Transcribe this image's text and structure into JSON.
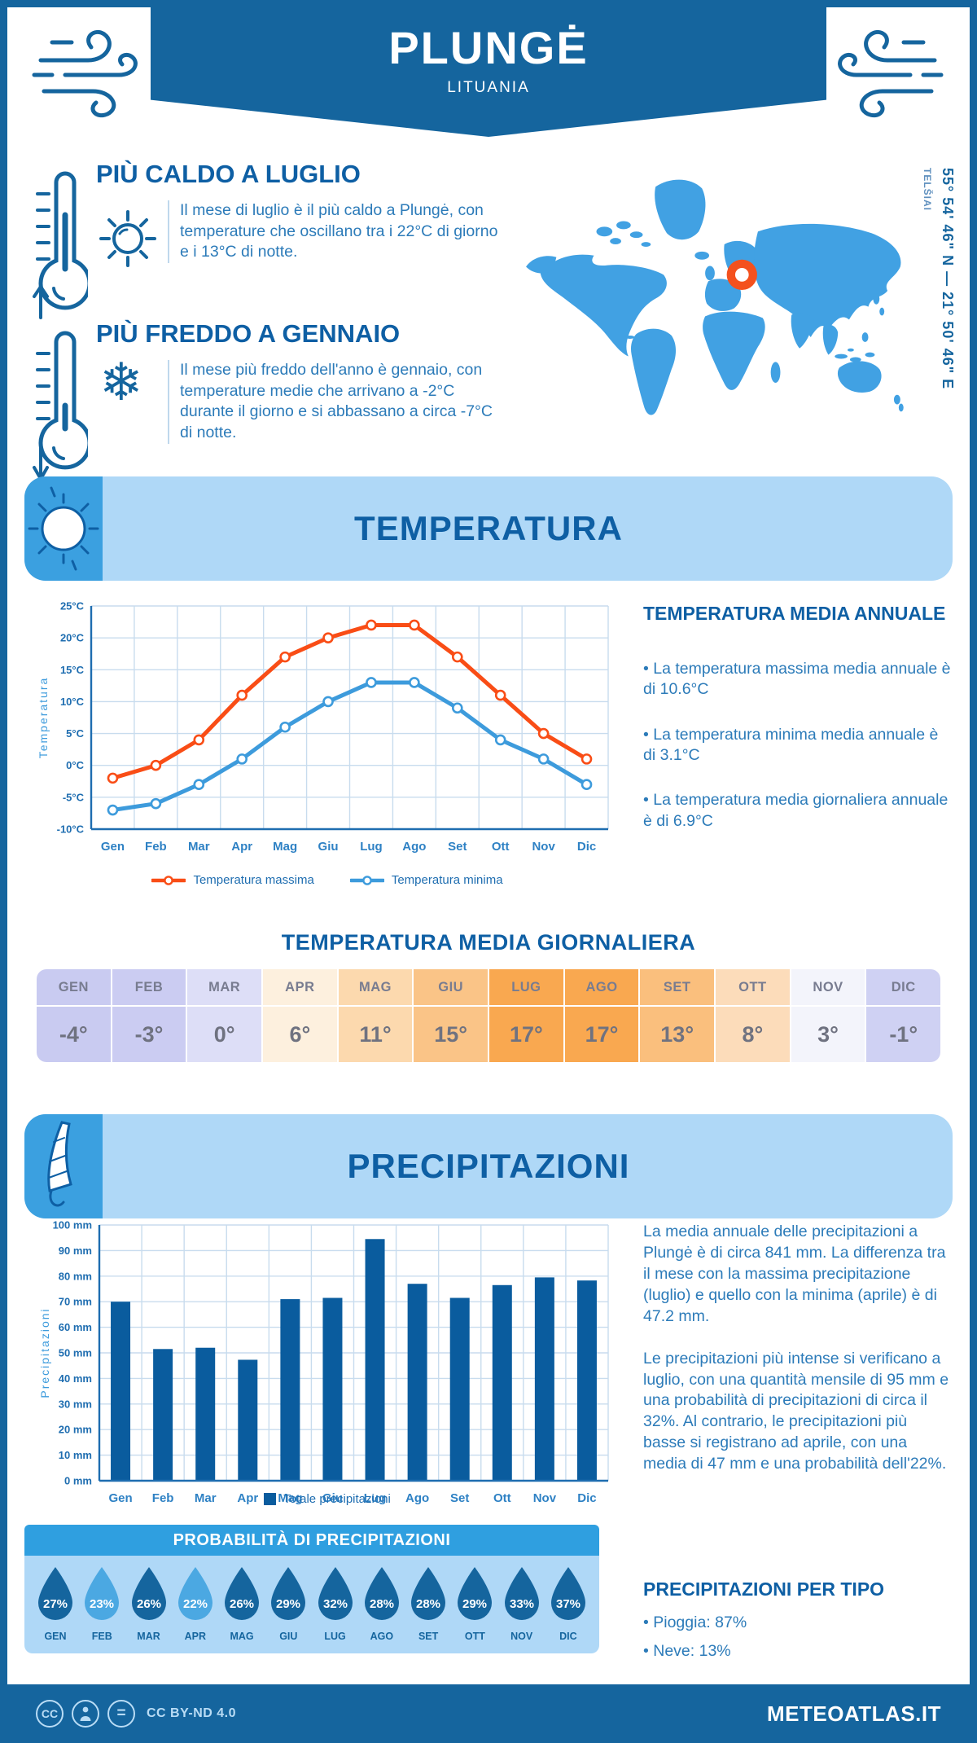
{
  "header": {
    "title": "PLUNGĖ",
    "subtitle": "LITUANIA"
  },
  "location": {
    "coordinates": "55° 54' 46\" N — 21° 50' 46\" E",
    "region": "TELŠIAI"
  },
  "highlights": {
    "warm": {
      "title": "PIÙ CALDO A LUGLIO",
      "body": "Il mese di luglio è il più caldo a Plungė, con temperature che oscillano tra i 22°C di giorno e i 13°C di notte."
    },
    "cold": {
      "title": "PIÙ FREDDO A GENNAIO",
      "body": "Il mese più freddo dell'anno è gennaio, con temperature medie che arrivano a -2°C durante il giorno e si abbassano a circa -7°C di notte."
    }
  },
  "temperature_section": {
    "banner": "TEMPERATURA",
    "annual_title": "TEMPERATURA MEDIA ANNUALE",
    "bullets": [
      "• La temperatura massima media annuale è di 10.6°C",
      "• La temperatura minima media annuale è di 3.1°C",
      "• La temperatura media giornaliera annuale è di 6.9°C"
    ]
  },
  "chart_data": [
    {
      "type": "line",
      "title": "Temperatura",
      "categories": [
        "Gen",
        "Feb",
        "Mar",
        "Apr",
        "Mag",
        "Giu",
        "Lug",
        "Ago",
        "Set",
        "Ott",
        "Nov",
        "Dic"
      ],
      "series": [
        {
          "name": "Temperatura massima",
          "color": "#F94D16",
          "values": [
            -2,
            0,
            4,
            11,
            17,
            20,
            22,
            22,
            17,
            11,
            5,
            1
          ]
        },
        {
          "name": "Temperatura minima",
          "color": "#3D9BDC",
          "values": [
            -7,
            -6,
            -3,
            1,
            6,
            10,
            13,
            13,
            9,
            4,
            1,
            -3
          ]
        }
      ],
      "xlabel": "",
      "ylabel": "Temperatura",
      "ylim": [
        -10,
        25
      ],
      "ytick_step": 5,
      "ytick_suffix": "°C",
      "grid": true,
      "legend_position": "bottom"
    },
    {
      "type": "bar",
      "title": "Precipitazioni",
      "categories": [
        "Gen",
        "Feb",
        "Mar",
        "Apr",
        "Mag",
        "Giu",
        "Lug",
        "Ago",
        "Set",
        "Ott",
        "Nov",
        "Dic"
      ],
      "series": [
        {
          "name": "Totale precipitazioni",
          "color": "#0A5C9E",
          "values": [
            70,
            51.5,
            52,
            47.3,
            71,
            71.5,
            94.5,
            77,
            71.5,
            76.5,
            79.5,
            78.3
          ]
        }
      ],
      "xlabel": "",
      "ylabel": "Precipitazioni",
      "ylim": [
        0,
        100
      ],
      "ytick_step": 10,
      "ytick_suffix": " mm",
      "grid": true,
      "legend_position": "bottom"
    }
  ],
  "temp_table": {
    "title": "TEMPERATURA MEDIA GIORNALIERA",
    "cells": [
      {
        "month": "GEN",
        "value": "-4°",
        "bg": "#c9cbf1"
      },
      {
        "month": "FEB",
        "value": "-3°",
        "bg": "#cbccf2"
      },
      {
        "month": "MAR",
        "value": "0°",
        "bg": "#dddef7"
      },
      {
        "month": "APR",
        "value": "6°",
        "bg": "#fdf0de"
      },
      {
        "month": "MAG",
        "value": "11°",
        "bg": "#fcd9ae"
      },
      {
        "month": "GIU",
        "value": "15°",
        "bg": "#fac487"
      },
      {
        "month": "LUG",
        "value": "17°",
        "bg": "#f9a850"
      },
      {
        "month": "AGO",
        "value": "17°",
        "bg": "#f9a850"
      },
      {
        "month": "SET",
        "value": "13°",
        "bg": "#fabf7d"
      },
      {
        "month": "OTT",
        "value": "8°",
        "bg": "#fcdcba"
      },
      {
        "month": "NOV",
        "value": "3°",
        "bg": "#f3f4fb"
      },
      {
        "month": "DIC",
        "value": "-1°",
        "bg": "#cfd1f3"
      }
    ]
  },
  "precipitation_section": {
    "banner": "PRECIPITAZIONI",
    "paragraph1": "La media annuale delle precipitazioni a Plungė è di circa 841 mm. La differenza tra il mese con la massima precipitazione (luglio) e quello con la minima (aprile) è di 47.2 mm.",
    "paragraph2": "Le precipitazioni più intense si verificano a luglio, con una quantità mensile di 95 mm e una probabilità di precipitazioni di circa il 32%. Al contrario, le precipitazioni più basse si registrano ad aprile, con una media di 47 mm e una probabilità dell'22%."
  },
  "probability": {
    "title": "PROBABILITÀ DI PRECIPITAZIONI",
    "drops": [
      {
        "month": "GEN",
        "value": "27%",
        "light": false
      },
      {
        "month": "FEB",
        "value": "23%",
        "light": true
      },
      {
        "month": "MAR",
        "value": "26%",
        "light": false
      },
      {
        "month": "APR",
        "value": "22%",
        "light": true
      },
      {
        "month": "MAG",
        "value": "26%",
        "light": false
      },
      {
        "month": "GIU",
        "value": "29%",
        "light": false
      },
      {
        "month": "LUG",
        "value": "32%",
        "light": false
      },
      {
        "month": "AGO",
        "value": "28%",
        "light": false
      },
      {
        "month": "SET",
        "value": "28%",
        "light": false
      },
      {
        "month": "OTT",
        "value": "29%",
        "light": false
      },
      {
        "month": "NOV",
        "value": "33%",
        "light": false
      },
      {
        "month": "DIC",
        "value": "37%",
        "light": false
      }
    ]
  },
  "precip_type": {
    "title": "PRECIPITAZIONI PER TIPO",
    "items": [
      "• Pioggia: 87%",
      "• Neve: 13%"
    ]
  },
  "footer": {
    "license": "CC BY-ND 4.0",
    "site": "METEOATLAS.IT"
  },
  "colors": {
    "primary_dark_blue": "#15659E",
    "heading_blue": "#0E5FA4",
    "body_text_blue": "#2C7BB9",
    "banner_light_blue": "#AFD8F7",
    "medium_blue": "#3BA0E0",
    "map_blue": "#41A1E3",
    "marker_orange": "#F4511E",
    "grid_blue": "#C8DCEE",
    "tick_blue": "#1E6DB0",
    "month_label_blue": "#2E81C4",
    "drop_dark": "#15659E",
    "drop_light": "#4BA8E2"
  }
}
